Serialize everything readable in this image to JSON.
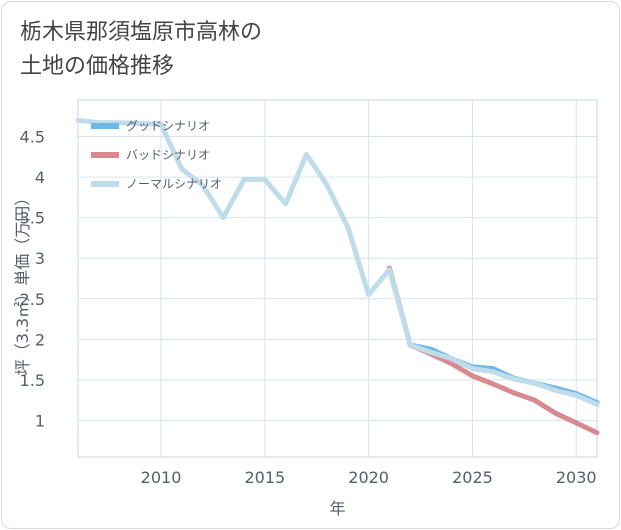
{
  "title": {
    "line1": "栃木県那須塩原市高林の",
    "line2": "土地の価格推移"
  },
  "colors": {
    "good": "#6fb8e6",
    "bad": "#d98a91",
    "normal": "#bfdcea",
    "grid": "#d6e4ee",
    "axis": "#555e6b"
  },
  "chart_data": {
    "type": "line",
    "xlabel": "年",
    "ylabel": "坪（3.3㎡）単価（万円）",
    "xlim": [
      2006,
      2031
    ],
    "ylim": [
      0.55,
      4.95
    ],
    "xticks": [
      2010,
      2015,
      2020,
      2025,
      2030
    ],
    "yticks": [
      1,
      1.5,
      2,
      2.5,
      3,
      3.5,
      4,
      4.5
    ],
    "ytick_labels": [
      "1",
      "1.5",
      "2",
      "2.5",
      "3",
      "3.5",
      "4",
      "4.5"
    ],
    "legend_position": "top-left",
    "series": [
      {
        "name": "グッドシナリオ",
        "color_key": "good",
        "points": [
          [
            2022,
            1.93
          ],
          [
            2023,
            1.88
          ],
          [
            2024,
            1.76
          ],
          [
            2025,
            1.66
          ],
          [
            2026,
            1.64
          ],
          [
            2027,
            1.52
          ],
          [
            2028,
            1.46
          ],
          [
            2029,
            1.4
          ],
          [
            2030,
            1.33
          ],
          [
            2031,
            1.22
          ]
        ]
      },
      {
        "name": "バッドシナリオ",
        "color_key": "bad",
        "points": [
          [
            2021,
            2.88
          ],
          [
            2022,
            1.93
          ],
          [
            2023,
            1.82
          ],
          [
            2024,
            1.7
          ],
          [
            2025,
            1.55
          ],
          [
            2026,
            1.45
          ],
          [
            2027,
            1.34
          ],
          [
            2028,
            1.25
          ],
          [
            2029,
            1.09
          ],
          [
            2030,
            0.97
          ],
          [
            2031,
            0.85
          ]
        ]
      },
      {
        "name": "ノーマルシナリオ",
        "color_key": "normal",
        "points": [
          [
            2006,
            4.7
          ],
          [
            2007,
            4.67
          ],
          [
            2008,
            4.67
          ],
          [
            2009,
            4.66
          ],
          [
            2010,
            4.65
          ],
          [
            2011,
            4.1
          ],
          [
            2012,
            3.9
          ],
          [
            2013,
            3.5
          ],
          [
            2014,
            3.97
          ],
          [
            2015,
            3.97
          ],
          [
            2016,
            3.67
          ],
          [
            2017,
            4.28
          ],
          [
            2018,
            3.9
          ],
          [
            2019,
            3.38
          ],
          [
            2020,
            2.55
          ],
          [
            2021,
            2.86
          ],
          [
            2022,
            1.93
          ],
          [
            2023,
            1.84
          ],
          [
            2024,
            1.76
          ],
          [
            2025,
            1.64
          ],
          [
            2026,
            1.6
          ],
          [
            2027,
            1.51
          ],
          [
            2028,
            1.46
          ],
          [
            2029,
            1.37
          ],
          [
            2030,
            1.31
          ],
          [
            2031,
            1.2
          ]
        ]
      }
    ]
  }
}
